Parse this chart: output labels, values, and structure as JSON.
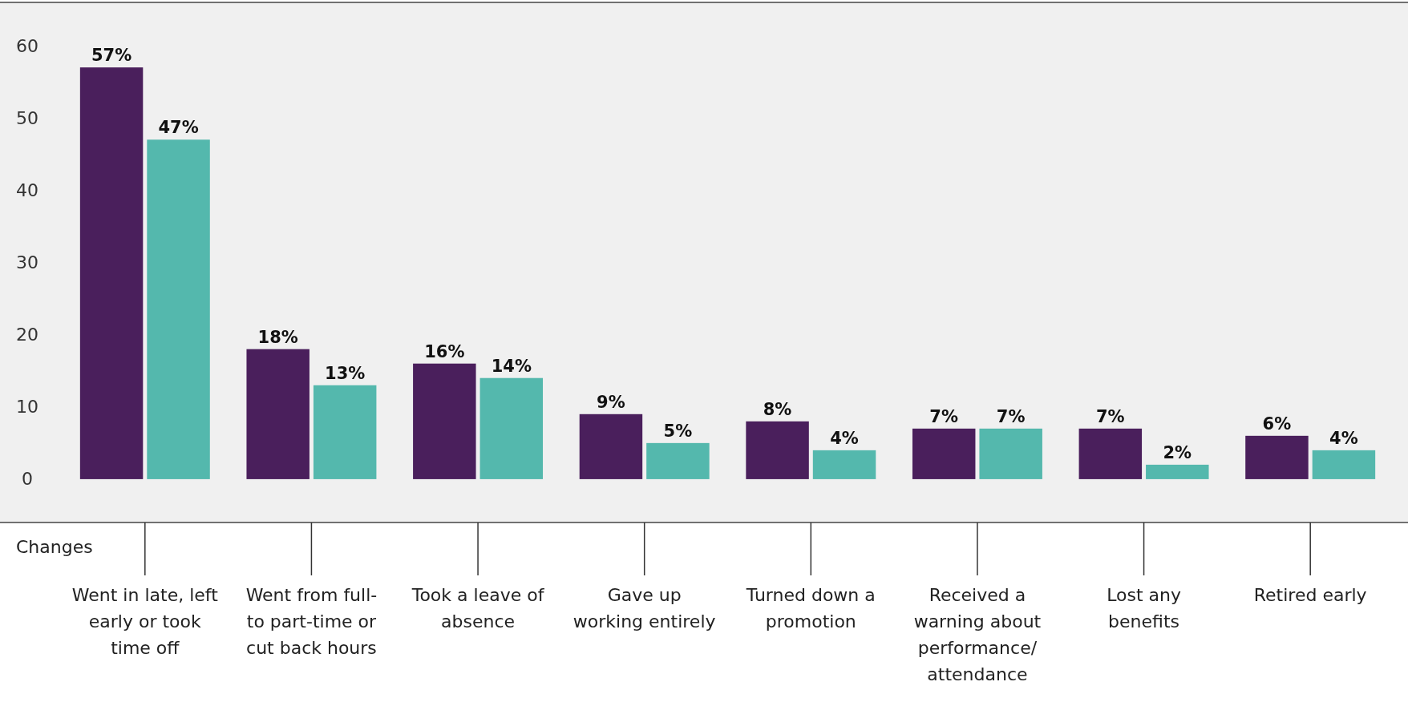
{
  "chart_data": {
    "type": "bar",
    "xlabel": "Changes",
    "categories": [
      "Went in late, left early or took time off",
      "Went from full- to part-time or cut back hours",
      "Took a leave of absence",
      "Gave up working entirely",
      "Turned down a promotion",
      "Received a warning about performance/ attendance",
      "Lost any benefits",
      "Retired early"
    ],
    "series": [
      {
        "color": "#4a1f5c",
        "values": [
          57,
          18,
          16,
          9,
          8,
          7,
          7,
          6
        ],
        "value_labels": [
          "57%",
          "18%",
          "16%",
          "9%",
          "8%",
          "7%",
          "7%",
          "6%"
        ]
      },
      {
        "color": "#54b8ad",
        "values": [
          47,
          13,
          14,
          5,
          4,
          7,
          2,
          4
        ],
        "value_labels": [
          "47%",
          "13%",
          "14%",
          "5%",
          "4%",
          "7%",
          "2%",
          "4%"
        ]
      }
    ],
    "ylim": [
      -6,
      66
    ],
    "yticks": [
      0,
      10,
      20,
      30,
      40,
      50,
      60
    ],
    "grid": false
  }
}
